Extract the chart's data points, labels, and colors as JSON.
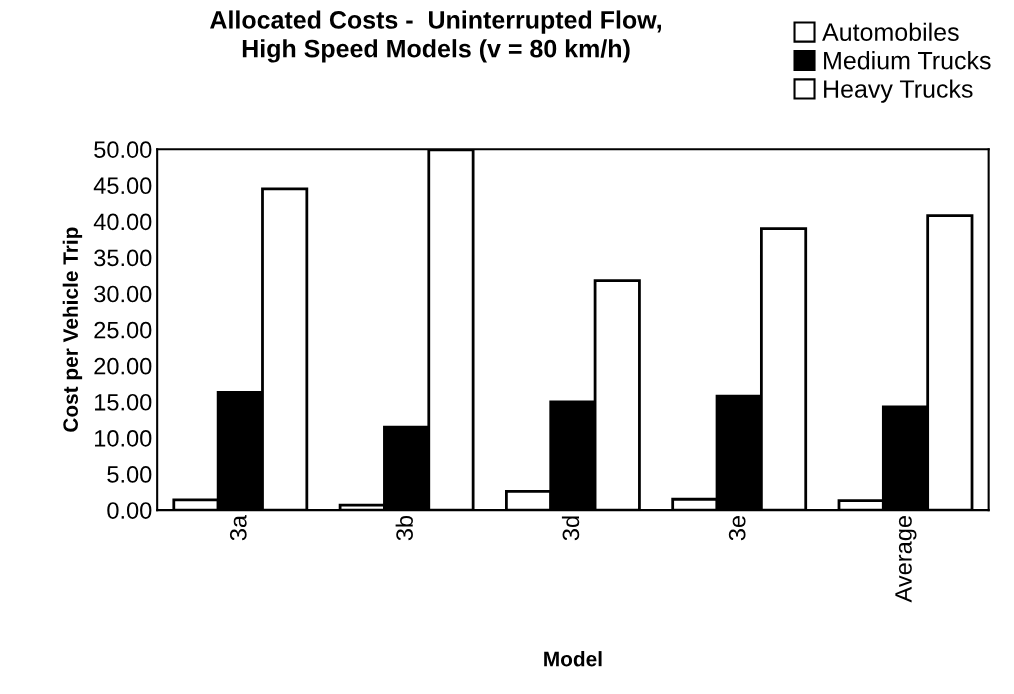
{
  "chart_data": {
    "type": "bar",
    "title": "Allocated Costs -  Uninterrupted Flow,\nHigh Speed Models (v = 80 km/h)",
    "xlabel": "Model",
    "ylabel": "Cost per Vehicle Trip",
    "categories": [
      "3a",
      "3b",
      "3d",
      "3e",
      "Average"
    ],
    "series": [
      {
        "name": "Automobiles",
        "color": "#ffffff",
        "values": [
          1.4,
          0.7,
          2.6,
          1.5,
          1.3
        ]
      },
      {
        "name": "Medium Trucks",
        "color": "#000000",
        "values": [
          16.3,
          11.5,
          15.0,
          15.8,
          14.3
        ]
      },
      {
        "name": "Heavy Trucks",
        "color": "#ffffff",
        "values": [
          44.5,
          49.9,
          31.8,
          39.0,
          40.8
        ]
      }
    ],
    "ylim": [
      0,
      50
    ],
    "yticks": [
      {
        "value": 0,
        "label": "0.00"
      },
      {
        "value": 5,
        "label": "5.00"
      },
      {
        "value": 10,
        "label": "10.00"
      },
      {
        "value": 15,
        "label": "15.00"
      },
      {
        "value": 20,
        "label": "20.00"
      },
      {
        "value": 25,
        "label": "25.00"
      },
      {
        "value": 30,
        "label": "30.00"
      },
      {
        "value": 35,
        "label": "35.00"
      },
      {
        "value": 40,
        "label": "40.00"
      },
      {
        "value": 45,
        "label": "45.00"
      },
      {
        "value": 50,
        "label": "50.00"
      }
    ],
    "grid": false,
    "legend": "top right"
  }
}
